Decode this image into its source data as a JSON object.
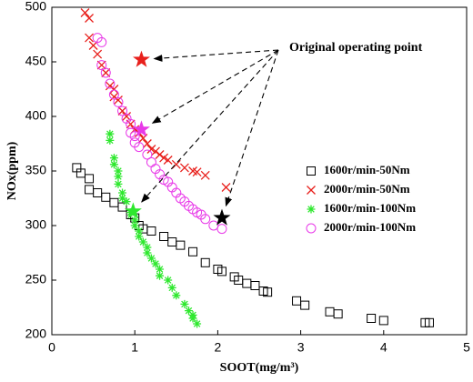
{
  "chart_data": {
    "type": "scatter",
    "x_label": "SOOT(mg/m³)",
    "y_label": "NOx(ppm)",
    "xlim": [
      0,
      5
    ],
    "xticks": [
      0,
      1,
      2,
      3,
      4,
      5
    ],
    "ylim": [
      200,
      500
    ],
    "yticks": [
      200,
      250,
      300,
      350,
      400,
      450,
      500
    ],
    "grid": false,
    "legend_position": "center right",
    "series": [
      {
        "name": "1600r/min-50Nm",
        "color": "#000000",
        "marker": "square",
        "x": [
          0.3,
          0.35,
          0.45,
          0.45,
          0.55,
          0.65,
          0.75,
          0.85,
          0.95,
          1.0,
          1.05,
          1.1,
          1.2,
          1.35,
          1.45,
          1.55,
          1.7,
          1.85,
          2.0,
          2.05,
          2.2,
          2.25,
          2.35,
          2.45,
          2.55,
          2.6,
          2.95,
          3.05,
          3.35,
          3.45,
          3.85,
          4.0,
          4.5,
          4.55
        ],
        "values": [
          353,
          348,
          343,
          333,
          330,
          326,
          321,
          317,
          310,
          307,
          300,
          297,
          295,
          290,
          285,
          282,
          276,
          266,
          260,
          258,
          253,
          250,
          247,
          245,
          240,
          239,
          231,
          227,
          221,
          219,
          215,
          213,
          211,
          211
        ]
      },
      {
        "name": "2000r/min-50Nm",
        "color": "#e8201c",
        "marker": "x",
        "x": [
          0.4,
          0.45,
          0.45,
          0.5,
          0.55,
          0.6,
          0.65,
          0.7,
          0.75,
          0.75,
          0.8,
          0.85,
          0.9,
          0.95,
          1.0,
          1.05,
          1.1,
          1.15,
          1.2,
          1.25,
          1.3,
          1.35,
          1.4,
          1.5,
          1.6,
          1.7,
          1.75,
          1.85,
          2.1
        ],
        "values": [
          495,
          490,
          472,
          465,
          457,
          447,
          440,
          428,
          425,
          418,
          415,
          405,
          400,
          393,
          388,
          385,
          380,
          375,
          370,
          368,
          365,
          362,
          360,
          356,
          353,
          350,
          349,
          346,
          335
        ]
      },
      {
        "name": "1600r/min-100Nm",
        "color": "#2ee82e",
        "marker": "asterisk",
        "x": [
          0.7,
          0.7,
          0.75,
          0.75,
          0.8,
          0.8,
          0.8,
          0.85,
          0.85,
          0.9,
          0.95,
          1.0,
          1.0,
          1.05,
          1.05,
          1.1,
          1.15,
          1.15,
          1.2,
          1.25,
          1.3,
          1.3,
          1.4,
          1.45,
          1.5,
          1.6,
          1.65,
          1.7,
          1.7,
          1.75
        ],
        "values": [
          384,
          378,
          362,
          356,
          350,
          345,
          338,
          330,
          325,
          322,
          312,
          305,
          300,
          295,
          290,
          285,
          280,
          275,
          270,
          265,
          260,
          254,
          250,
          243,
          236,
          228,
          222,
          218,
          215,
          210
        ]
      },
      {
        "name": "2000r/min-100Nm",
        "color": "#e838e8",
        "marker": "circle",
        "x": [
          0.55,
          0.6,
          0.6,
          0.65,
          0.7,
          0.75,
          0.8,
          0.85,
          0.9,
          0.95,
          0.95,
          1.0,
          1.0,
          1.05,
          1.15,
          1.2,
          1.25,
          1.3,
          1.35,
          1.4,
          1.45,
          1.5,
          1.55,
          1.6,
          1.65,
          1.7,
          1.75,
          1.8,
          1.85,
          1.95,
          2.05
        ],
        "values": [
          472,
          468,
          447,
          440,
          430,
          420,
          413,
          405,
          398,
          393,
          385,
          382,
          376,
          372,
          365,
          358,
          352,
          347,
          342,
          340,
          335,
          330,
          325,
          322,
          318,
          315,
          312,
          310,
          306,
          300,
          297
        ]
      }
    ],
    "highlights": {
      "x": [
        1.08,
        1.08,
        0.98,
        2.05
      ],
      "values": [
        452,
        388,
        313,
        307
      ],
      "colors": [
        "#e8201c",
        "#e838e8",
        "#2ee82e",
        "#000000"
      ]
    },
    "annotation": "Original operating point"
  }
}
